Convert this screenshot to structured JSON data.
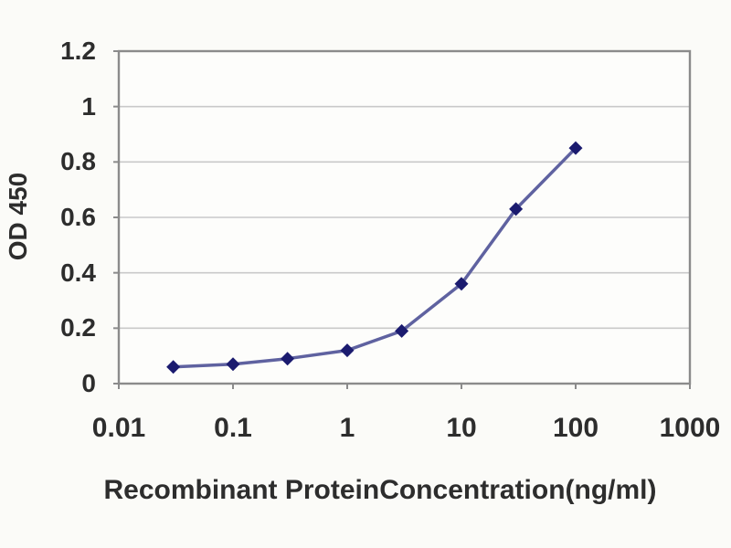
{
  "figure": {
    "description": "ELISA standard curve line chart",
    "background_color": "#fbfbf8"
  },
  "chart_data": {
    "type": "line",
    "title": "",
    "xlabel": "Recombinant ProteinConcentration(ng/ml)",
    "ylabel": "OD 450",
    "x_scale": "log10",
    "y_scale": "linear",
    "x": [
      0.03,
      0.1,
      0.3,
      1,
      3,
      10,
      30,
      100
    ],
    "y": [
      0.06,
      0.07,
      0.09,
      0.12,
      0.19,
      0.36,
      0.63,
      0.85
    ],
    "xlim": [
      0.01,
      1000
    ],
    "ylim": [
      0,
      1.2
    ],
    "xticklabels": [
      "0.01",
      "0.1",
      "1",
      "10",
      "100",
      "1000"
    ],
    "yticklabels": [
      "0",
      "0.2",
      "0.4",
      "0.6",
      "0.8",
      "1",
      "1.2"
    ],
    "grid": "horizontal",
    "legend": "none",
    "marker": "diamond",
    "colors": {
      "line": "#5f62a0",
      "marker": "#1b1b6f",
      "grid": "#c9c9c9",
      "border": "#8b8b8b",
      "tick": "#8b8b8b",
      "text": "#2d2d2d",
      "plot_background": "#fdfdfb"
    }
  }
}
